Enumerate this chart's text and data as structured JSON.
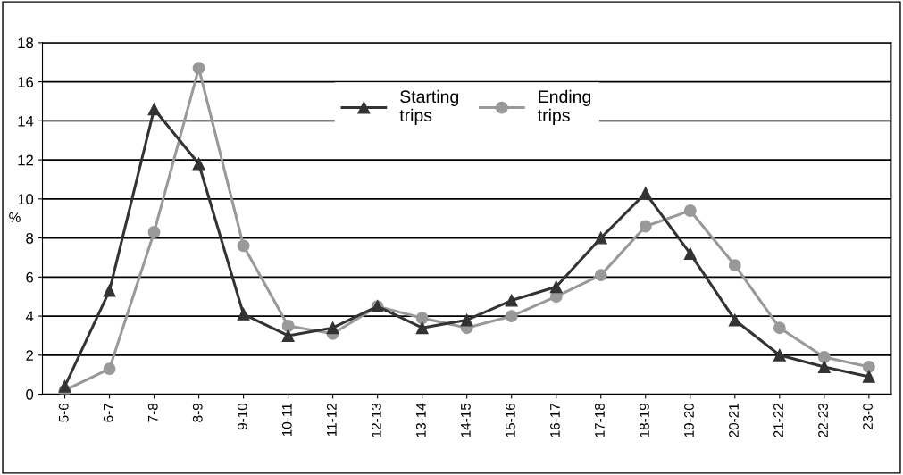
{
  "chart_data": {
    "type": "line",
    "ylabel": "%",
    "categories": [
      "5-6",
      "6-7",
      "7-8",
      "8-9",
      "9-10",
      "10-11",
      "11-12",
      "12-13",
      "13-14",
      "14-15",
      "15-16",
      "16-17",
      "17-18",
      "18-19",
      "19-20",
      "20-21",
      "21-22",
      "22-23",
      "23-0"
    ],
    "series": [
      {
        "name": "Starting\ntrips",
        "color": "#333333",
        "marker": "triangle",
        "values": [
          0.4,
          5.3,
          14.6,
          11.8,
          4.1,
          3.0,
          3.4,
          4.5,
          3.4,
          3.8,
          4.8,
          5.5,
          8.0,
          10.3,
          7.2,
          3.8,
          2.0,
          1.4,
          0.9
        ]
      },
      {
        "name": "Ending\ntrips",
        "color": "#999999",
        "marker": "circle",
        "values": [
          0.2,
          1.3,
          8.3,
          16.7,
          7.6,
          3.5,
          3.1,
          4.5,
          3.9,
          3.4,
          4.0,
          5.0,
          6.1,
          8.6,
          9.4,
          6.6,
          3.4,
          1.9,
          1.4
        ]
      }
    ],
    "ylim": [
      0,
      18
    ],
    "yticks": [
      0,
      2,
      4,
      6,
      8,
      10,
      12,
      14,
      16,
      18
    ],
    "grid": "y",
    "legend": "top",
    "line_style": "solid"
  }
}
